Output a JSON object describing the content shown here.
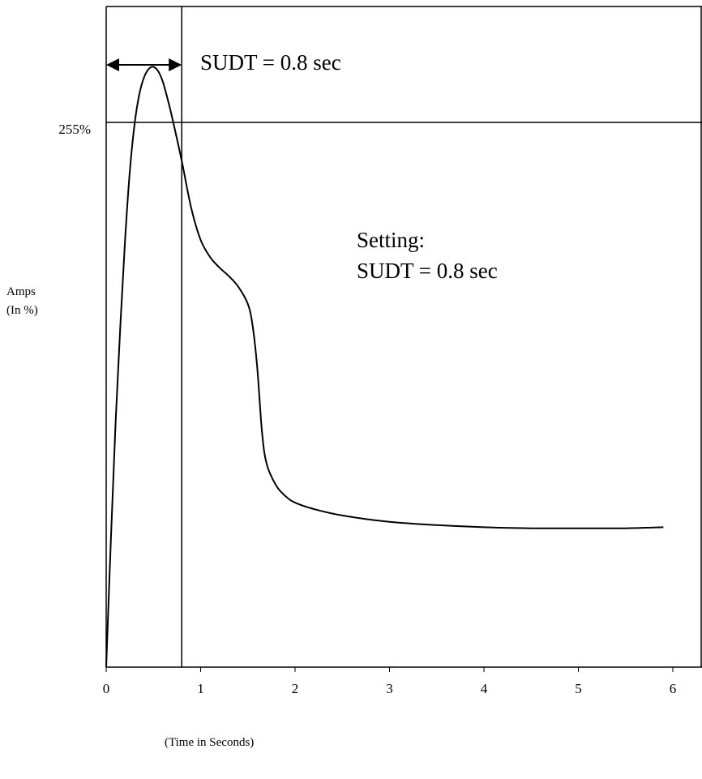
{
  "chart_data": {
    "type": "line",
    "xlabel": "(Time in Seconds)",
    "ylabel_lines": [
      "Amps",
      "(In %)"
    ],
    "x_ticks": [
      0,
      1,
      2,
      3,
      4,
      5,
      6
    ],
    "x_tick_labels": [
      "0",
      "1",
      "2",
      "3",
      "4",
      "5",
      "6"
    ],
    "xlim": [
      0,
      6.2
    ],
    "ylim": [
      0,
      370
    ],
    "y_reference": {
      "value": 255,
      "label": "255%"
    },
    "x_reference": {
      "value": 0.8
    },
    "series": [
      {
        "points": [
          [
            0.0,
            0
          ],
          [
            0.05,
            60
          ],
          [
            0.1,
            115
          ],
          [
            0.15,
            160
          ],
          [
            0.2,
            200
          ],
          [
            0.25,
            232
          ],
          [
            0.3,
            254
          ],
          [
            0.35,
            268
          ],
          [
            0.4,
            276
          ],
          [
            0.45,
            280
          ],
          [
            0.5,
            281
          ],
          [
            0.55,
            279
          ],
          [
            0.6,
            274
          ],
          [
            0.65,
            266
          ],
          [
            0.7,
            257
          ],
          [
            0.8,
            237
          ],
          [
            0.9,
            215
          ],
          [
            1.0,
            200
          ],
          [
            1.1,
            192
          ],
          [
            1.2,
            187
          ],
          [
            1.3,
            183
          ],
          [
            1.4,
            178
          ],
          [
            1.5,
            170
          ],
          [
            1.55,
            160
          ],
          [
            1.6,
            140
          ],
          [
            1.65,
            110
          ],
          [
            1.7,
            95
          ],
          [
            1.8,
            85
          ],
          [
            1.9,
            80
          ],
          [
            2.0,
            77
          ],
          [
            2.2,
            74
          ],
          [
            2.5,
            71
          ],
          [
            3.0,
            68
          ],
          [
            3.5,
            66.5
          ],
          [
            4.0,
            65.5
          ],
          [
            4.5,
            65
          ],
          [
            5.0,
            65
          ],
          [
            5.5,
            65
          ],
          [
            5.9,
            65.5
          ]
        ]
      }
    ],
    "annotations": {
      "sudt_arrow_label": "SUDT = 0.8 sec",
      "setting_line1": "Setting:",
      "setting_line2": "SUDT = 0.8 sec"
    }
  }
}
